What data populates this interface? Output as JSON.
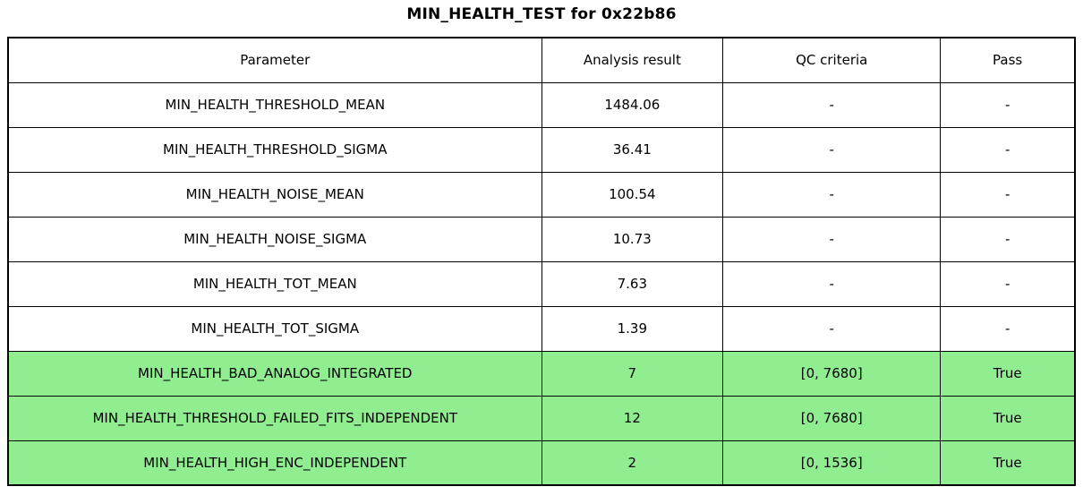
{
  "title": "MIN_HEALTH_TEST for 0x22b86",
  "chart_data": {
    "type": "table",
    "title": "MIN_HEALTH_TEST for 0x22b86",
    "columns": [
      "Parameter",
      "Analysis result",
      "QC criteria",
      "Pass"
    ],
    "rows": [
      [
        "MIN_HEALTH_THRESHOLD_MEAN",
        "1484.06",
        "-",
        "-"
      ],
      [
        "MIN_HEALTH_THRESHOLD_SIGMA",
        "36.41",
        "-",
        "-"
      ],
      [
        "MIN_HEALTH_NOISE_MEAN",
        "100.54",
        "-",
        "-"
      ],
      [
        "MIN_HEALTH_NOISE_SIGMA",
        "10.73",
        "-",
        "-"
      ],
      [
        "MIN_HEALTH_TOT_MEAN",
        "7.63",
        "-",
        "-"
      ],
      [
        "MIN_HEALTH_TOT_SIGMA",
        "1.39",
        "-",
        "-"
      ],
      [
        "MIN_HEALTH_BAD_ANALOG_INTEGRATED",
        "7",
        "[0, 7680]",
        "True"
      ],
      [
        "MIN_HEALTH_THRESHOLD_FAILED_FITS_INDEPENDENT",
        "12",
        "[0, 7680]",
        "True"
      ],
      [
        "MIN_HEALTH_HIGH_ENC_INDEPENDENT",
        "2",
        "[0, 1536]",
        "True"
      ]
    ],
    "highlighted_rows": [
      6,
      7,
      8
    ],
    "legend_position": "none",
    "grid": true
  },
  "colors": {
    "pass_row_bg": "#90EE90",
    "border": "#000000",
    "background": "#ffffff",
    "text": "#000000"
  }
}
